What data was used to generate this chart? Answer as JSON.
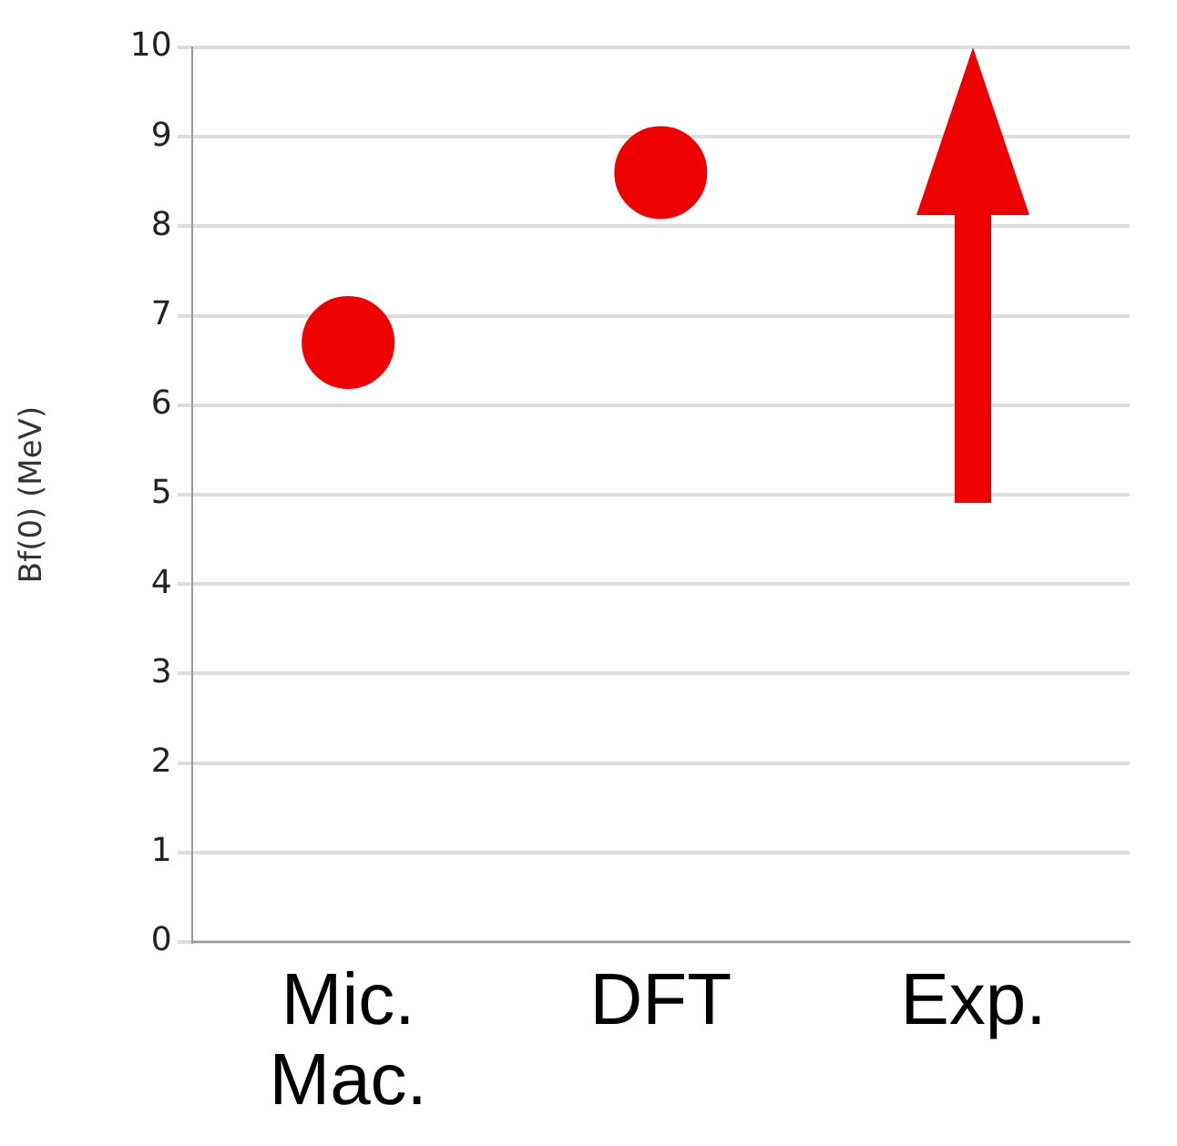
{
  "chart_data": {
    "type": "scatter",
    "ylabel": "Bf(0) (MeV)",
    "categories": [
      "Mic. Mac.",
      "DFT",
      "Exp."
    ],
    "series": [
      {
        "color": "#ee0000",
        "values": [
          6.7,
          8.6,
          null
        ]
      }
    ],
    "ylim": [
      0,
      10
    ],
    "yticks": [
      0,
      1,
      2,
      3,
      4,
      5,
      6,
      7,
      8,
      9,
      10
    ],
    "grid": "y",
    "legend": false,
    "marker": "circle"
  }
}
